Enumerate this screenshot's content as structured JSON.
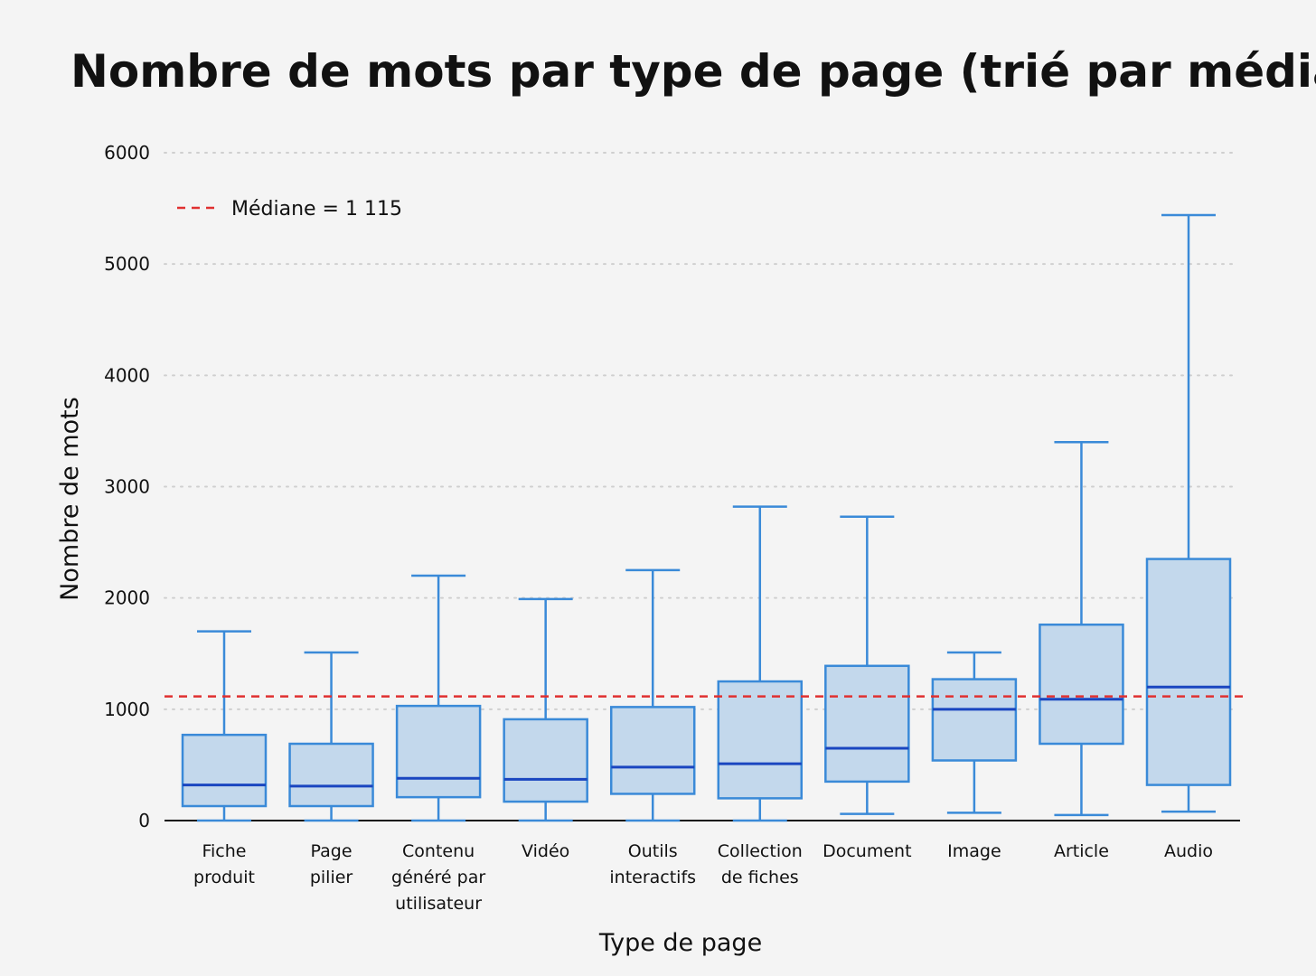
{
  "chart_data": {
    "type": "box",
    "title": "Nombre de mots par type de page (trié par médiane)",
    "xlabel": "Type de page",
    "ylabel": "Nombre de mots",
    "ylim": [
      0,
      6000
    ],
    "yticks": [
      0,
      1000,
      2000,
      3000,
      4000,
      5000,
      6000
    ],
    "grid": true,
    "legend_position": "top-left",
    "reference_line": {
      "label": "Médiane = 1 115",
      "value": 1115,
      "color": "#e03030"
    },
    "box_color": "#3a8ad8",
    "box_fill": "#c3d8ec",
    "median_color": "#1a46c0",
    "categories": [
      {
        "label": [
          "Fiche",
          "produit"
        ],
        "whisker_low": 0,
        "q1": 130,
        "median": 320,
        "q3": 770,
        "whisker_high": 1700
      },
      {
        "label": [
          "Page",
          "pilier"
        ],
        "whisker_low": 0,
        "q1": 130,
        "median": 310,
        "q3": 690,
        "whisker_high": 1510
      },
      {
        "label": [
          "Contenu",
          "généré par",
          "utilisateur"
        ],
        "whisker_low": 0,
        "q1": 210,
        "median": 380,
        "q3": 1030,
        "whisker_high": 2200
      },
      {
        "label": [
          "Vidéo"
        ],
        "whisker_low": 0,
        "q1": 170,
        "median": 370,
        "q3": 910,
        "whisker_high": 1990
      },
      {
        "label": [
          "Outils",
          "interactifs"
        ],
        "whisker_low": 0,
        "q1": 240,
        "median": 480,
        "q3": 1020,
        "whisker_high": 2250
      },
      {
        "label": [
          "Collection",
          "de fiches"
        ],
        "whisker_low": 0,
        "q1": 200,
        "median": 510,
        "q3": 1250,
        "whisker_high": 2820
      },
      {
        "label": [
          "Document"
        ],
        "whisker_low": 60,
        "q1": 350,
        "median": 650,
        "q3": 1390,
        "whisker_high": 2730
      },
      {
        "label": [
          "Image"
        ],
        "whisker_low": 70,
        "q1": 540,
        "median": 1000,
        "q3": 1270,
        "whisker_high": 1510
      },
      {
        "label": [
          "Article"
        ],
        "whisker_low": 50,
        "q1": 690,
        "median": 1090,
        "q3": 1760,
        "whisker_high": 3400
      },
      {
        "label": [
          "Audio"
        ],
        "whisker_low": 80,
        "q1": 320,
        "median": 1200,
        "q3": 2350,
        "whisker_high": 5440
      }
    ]
  }
}
